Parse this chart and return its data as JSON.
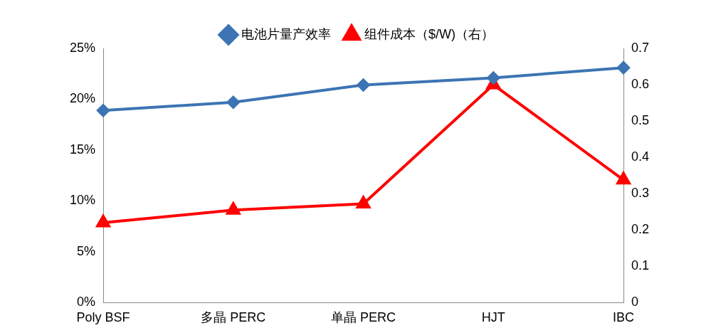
{
  "chart_data": {
    "type": "line",
    "categories": [
      "Poly BSF",
      "多晶 PERC",
      "单晶 PERC",
      "HJT",
      "IBC"
    ],
    "series": [
      {
        "name": "电池片量产效率",
        "color": "#3c74b4",
        "values": [
          18.9,
          19.7,
          21.4,
          22.1,
          23.1
        ],
        "marker": "diamond"
      },
      {
        "name": "组件成本（$/W)（右）",
        "color": "#ff0000",
        "values": [
          0.22,
          0.255,
          0.272,
          0.6,
          0.338
        ],
        "axis": "y2",
        "marker": "triangle"
      }
    ],
    "ylim": [
      0,
      25
    ],
    "yticks": [
      {
        "value": 0,
        "label": "0%"
      },
      {
        "value": 5,
        "label": "5%"
      },
      {
        "value": 10,
        "label": "10%"
      },
      {
        "value": 15,
        "label": "15%"
      },
      {
        "value": 20,
        "label": "20%"
      },
      {
        "value": 25,
        "label": "25%"
      }
    ],
    "y2lim": [
      0,
      0.7
    ],
    "y2ticks": [
      0,
      0.1,
      0.2,
      0.3,
      0.4,
      0.5,
      0.6,
      0.7
    ],
    "grid": false,
    "legend": "top",
    "line_style": "solid"
  }
}
